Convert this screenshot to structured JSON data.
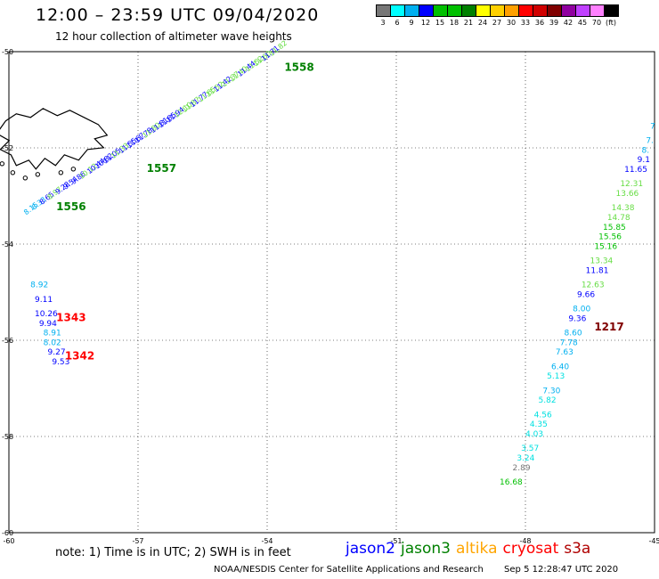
{
  "header": {
    "title": "12:00 – 23:59 UTC 09/04/2020",
    "subtitle": "12 hour collection of altimeter wave heights"
  },
  "legend": {
    "colors": [
      "#777777",
      "#00ffff",
      "#00b0f0",
      "#0000ff",
      "#00c000",
      "#00c000",
      "#008000",
      "#ffff00",
      "#ffd000",
      "#ffa000",
      "#ff0000",
      "#d00000",
      "#800000",
      "#9000a0",
      "#c040ff",
      "#ff80ff",
      "#000000"
    ],
    "labels": [
      "3",
      "6",
      "9",
      "12",
      "15",
      "18",
      "21",
      "24",
      "27",
      "30",
      "33",
      "36",
      "39",
      "42",
      "45",
      "70",
      "(ft)"
    ]
  },
  "footer": {
    "note": "note: 1) Time is in UTC; 2) SWH is in feet",
    "credit": "NOAA/NESDIS Center for Satellite Applications and Research",
    "timestamp": "Sep  5 12:28:47 UTC 2020",
    "satellites": [
      {
        "name": "jason2",
        "color": "#0000ff"
      },
      {
        "name": "jason3",
        "color": "#008000"
      },
      {
        "name": "altika",
        "color": "#ffa500"
      },
      {
        "name": "cryosat",
        "color": "#ff0000"
      },
      {
        "name": "s3a",
        "color": "#b00000"
      }
    ]
  },
  "map": {
    "lon_min": -60,
    "lon_max": -45,
    "lat_min": -60,
    "lat_max": -50,
    "lon_ticks": [
      "-60",
      "-57",
      "-54",
      "-51",
      "-48",
      "-45"
    ],
    "lat_ticks": [
      "-50",
      "-52",
      "-54",
      "-56",
      "-58",
      "-60"
    ],
    "track_nw_values": [
      "8.15",
      "8.33",
      "8.65",
      "8.97",
      "9.28",
      "9.54",
      "9.86",
      "10.12",
      "10.44",
      "10.82",
      "11.05",
      "11.33",
      "11.55",
      "11.67",
      "11.78",
      "11.80",
      "11.81",
      "11.85",
      "11.94",
      "12.10",
      "11.87",
      "11.77",
      "11.65",
      "11.52",
      "11.42",
      "11.37",
      "11.40",
      "11.44",
      "11.52",
      "11.60",
      "11.71",
      "11.82"
    ],
    "time_labels": [
      {
        "text": "1558",
        "lon": -53.6,
        "lat": -50.4,
        "color": "#008000"
      },
      {
        "text": "1557",
        "lon": -56.8,
        "lat": -52.5,
        "color": "#008000"
      },
      {
        "text": "1556",
        "lon": -58.9,
        "lat": -53.3,
        "color": "#008000"
      },
      {
        "text": "1343",
        "lon": -58.9,
        "lat": -55.6,
        "color": "#ff0000"
      },
      {
        "text": "1342",
        "lon": -58.7,
        "lat": -56.4,
        "color": "#ff0000"
      },
      {
        "text": "1217",
        "lon": -46.4,
        "lat": -55.8,
        "color": "#800000"
      }
    ],
    "west_track": [
      {
        "text": "8.92",
        "lon": -59.5,
        "lat": -54.9,
        "color": "#00b0f0"
      },
      {
        "text": "9.11",
        "lon": -59.4,
        "lat": -55.2,
        "color": "#0000ff"
      },
      {
        "text": "10.26",
        "lon": -59.4,
        "lat": -55.5,
        "color": "#0000ff"
      },
      {
        "text": "9.94",
        "lon": -59.3,
        "lat": -55.7,
        "color": "#0000ff"
      },
      {
        "text": "8.91",
        "lon": -59.2,
        "lat": -55.9,
        "color": "#00b0f0"
      },
      {
        "text": "8.02",
        "lon": -59.2,
        "lat": -56.1,
        "color": "#00b0f0"
      },
      {
        "text": "9.27",
        "lon": -59.1,
        "lat": -56.3,
        "color": "#0000ff"
      },
      {
        "text": "9.53",
        "lon": -59.0,
        "lat": -56.5,
        "color": "#0000ff"
      }
    ],
    "east_track": [
      {
        "text": "7",
        "lon": -45.1,
        "lat": -51.6,
        "color": "#00b0f0"
      },
      {
        "text": "7.",
        "lon": -45.2,
        "lat": -51.9,
        "color": "#00b0f0"
      },
      {
        "text": "8.",
        "lon": -45.3,
        "lat": -52.1,
        "color": "#00b0f0"
      },
      {
        "text": "9.1",
        "lon": -45.4,
        "lat": -52.3,
        "color": "#0000ff"
      },
      {
        "text": "11.65",
        "lon": -45.7,
        "lat": -52.5,
        "color": "#0000ff"
      },
      {
        "text": "12.31",
        "lon": -45.8,
        "lat": -52.8,
        "color": "#66dd44"
      },
      {
        "text": "13.66",
        "lon": -45.9,
        "lat": -53.0,
        "color": "#66dd44"
      },
      {
        "text": "14.38",
        "lon": -46.0,
        "lat": -53.3,
        "color": "#66dd44"
      },
      {
        "text": "14.78",
        "lon": -46.1,
        "lat": -53.5,
        "color": "#66dd44"
      },
      {
        "text": "15.85",
        "lon": -46.2,
        "lat": -53.7,
        "color": "#00c000"
      },
      {
        "text": "15.56",
        "lon": -46.3,
        "lat": -53.9,
        "color": "#00c000"
      },
      {
        "text": "15.16",
        "lon": -46.4,
        "lat": -54.1,
        "color": "#00c000"
      },
      {
        "text": "13.34",
        "lon": -46.5,
        "lat": -54.4,
        "color": "#66dd44"
      },
      {
        "text": "11.81",
        "lon": -46.6,
        "lat": -54.6,
        "color": "#0000ff"
      },
      {
        "text": "12.63",
        "lon": -46.7,
        "lat": -54.9,
        "color": "#66dd44"
      },
      {
        "text": "9.66",
        "lon": -46.8,
        "lat": -55.1,
        "color": "#0000ff"
      },
      {
        "text": "8.00",
        "lon": -46.9,
        "lat": -55.4,
        "color": "#00b0f0"
      },
      {
        "text": "9.36",
        "lon": -47.0,
        "lat": -55.6,
        "color": "#0000ff"
      },
      {
        "text": "8.60",
        "lon": -47.1,
        "lat": -55.9,
        "color": "#00b0f0"
      },
      {
        "text": "7.78",
        "lon": -47.2,
        "lat": -56.1,
        "color": "#00b0f0"
      },
      {
        "text": "7.63",
        "lon": -47.3,
        "lat": -56.3,
        "color": "#00b0f0"
      },
      {
        "text": "6.40",
        "lon": -47.4,
        "lat": -56.6,
        "color": "#00b0f0"
      },
      {
        "text": "5.13",
        "lon": -47.5,
        "lat": -56.8,
        "color": "#00e0e0"
      },
      {
        "text": "7.30",
        "lon": -47.6,
        "lat": -57.1,
        "color": "#00b0f0"
      },
      {
        "text": "5.82",
        "lon": -47.7,
        "lat": -57.3,
        "color": "#00e0e0"
      },
      {
        "text": "4.56",
        "lon": -47.8,
        "lat": -57.6,
        "color": "#00e0e0"
      },
      {
        "text": "4.35",
        "lon": -47.9,
        "lat": -57.8,
        "color": "#00e0e0"
      },
      {
        "text": "4.03",
        "lon": -48.0,
        "lat": -58.0,
        "color": "#00e0e0"
      },
      {
        "text": "3.57",
        "lon": -48.1,
        "lat": -58.3,
        "color": "#00e0e0"
      },
      {
        "text": "3.24",
        "lon": -48.2,
        "lat": -58.5,
        "color": "#00e0e0"
      },
      {
        "text": "2.89",
        "lon": -48.3,
        "lat": -58.7,
        "color": "#777777"
      },
      {
        "text": "16.68",
        "lon": -48.6,
        "lat": -59.0,
        "color": "#00c000"
      }
    ],
    "islands": [
      {
        "name": "falkland-islands",
        "lon_center": -59.0,
        "lat_center": -51.7
      }
    ]
  }
}
